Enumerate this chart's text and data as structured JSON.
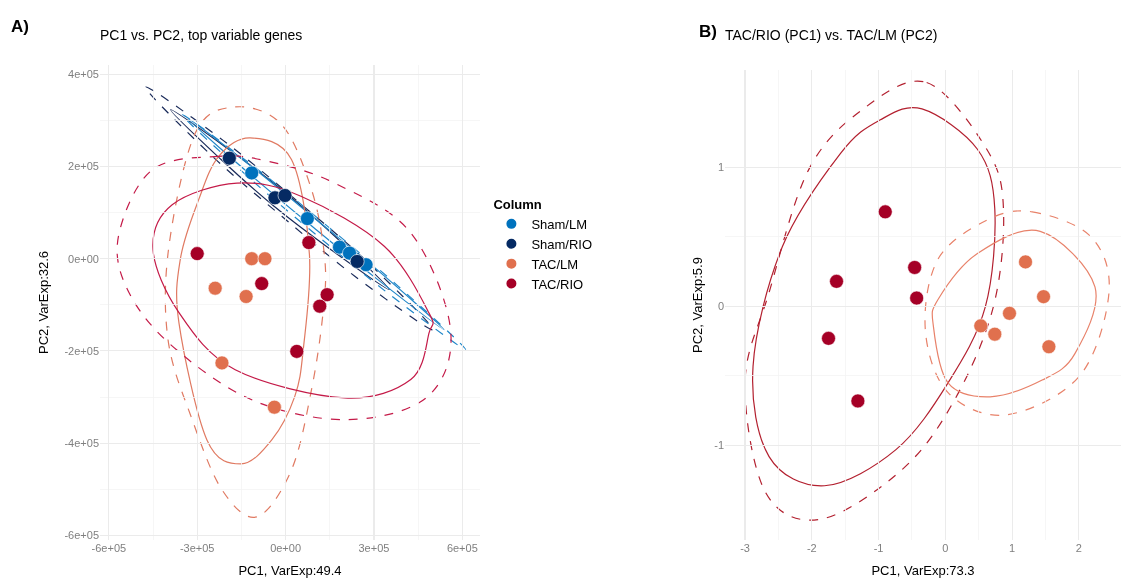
{
  "chart_data": [
    {
      "type": "scatter",
      "title": "PC1 vs. PC2, top variable genes",
      "xlabel": "PC1, VarExp:49.4",
      "ylabel": "PC2, VarExp:32.6",
      "legend_title": "Column",
      "legend": "right",
      "grid": true,
      "annotations": [
        "A)"
      ],
      "xlim": [
        -630000,
        660000
      ],
      "ylim": [
        -610000,
        420000
      ],
      "xticks": [
        {
          "value": -600000,
          "label": "-6e+05"
        },
        {
          "value": -300000,
          "label": "-3e+05"
        },
        {
          "value": 0,
          "label": "0e+00"
        },
        {
          "value": 300000,
          "label": "3e+05"
        },
        {
          "value": 600000,
          "label": "6e+05"
        }
      ],
      "yticks": [
        {
          "value": -600000,
          "label": "-6e+05"
        },
        {
          "value": -400000,
          "label": "-4e+05"
        },
        {
          "value": -200000,
          "label": "-2e+05"
        },
        {
          "value": 0,
          "label": "0e+00"
        },
        {
          "value": 200000,
          "label": "2e+05"
        },
        {
          "value": 400000,
          "label": "4e+05"
        }
      ],
      "series": [
        {
          "type": "scatter",
          "name": "Sham/LM",
          "color": "#0072bd",
          "marker": "circle",
          "x": [
            -115000,
            74000,
            183000,
            217000,
            273000
          ],
          "values": [
            186000,
            87000,
            25000,
            12000,
            -13000
          ]
        },
        {
          "type": "scatter",
          "name": "Sham/RIO",
          "color": "#052a63",
          "marker": "circle",
          "x": [
            -191000,
            -36000,
            -2000,
            243000
          ],
          "values": [
            218000,
            132000,
            137000,
            -6000
          ]
        },
        {
          "type": "scatter",
          "name": "TAC/LM",
          "color": "#e0704e",
          "marker": "circle",
          "x": [
            -115000,
            -70000,
            -239000,
            -134000,
            -216000,
            -38000
          ],
          "values": [
            0,
            0,
            -64000,
            -82000,
            -226000,
            -322000
          ]
        },
        {
          "type": "scatter",
          "name": "TAC/RIO",
          "color": "#a50026",
          "marker": "circle",
          "x": [
            -300000,
            79000,
            -81000,
            141000,
            116000,
            38000
          ],
          "values": [
            11000,
            35000,
            -54000,
            -78000,
            -103000,
            -201000
          ]
        }
      ]
    },
    {
      "type": "scatter",
      "title": "TAC/RIO (PC1) vs. TAC/LM (PC2)",
      "xlabel": "PC1, VarExp:73.3",
      "ylabel": "PC2, VarExp:5.9",
      "legend": false,
      "grid": true,
      "annotations": [
        "B)"
      ],
      "xlim": [
        -3.3,
        2.63
      ],
      "ylim": [
        -1.68,
        1.7
      ],
      "xticks": [
        -3,
        -2,
        -1,
        0,
        1,
        2
      ],
      "yticks": [
        -1,
        0,
        1
      ],
      "series": [
        {
          "type": "scatter",
          "color": "#a50026",
          "marker": "circle",
          "x": [
            -0.9,
            -1.63,
            -0.46,
            -0.43,
            -1.75,
            -1.31
          ],
          "values": [
            0.68,
            0.18,
            0.28,
            0.06,
            -0.23,
            -0.68
          ]
        },
        {
          "type": "scatter",
          "color": "#e0704e",
          "marker": "circle",
          "x": [
            1.2,
            1.47,
            0.96,
            0.53,
            0.74,
            1.55
          ],
          "values": [
            0.32,
            0.07,
            -0.05,
            -0.14,
            -0.2,
            -0.29
          ]
        }
      ]
    }
  ]
}
